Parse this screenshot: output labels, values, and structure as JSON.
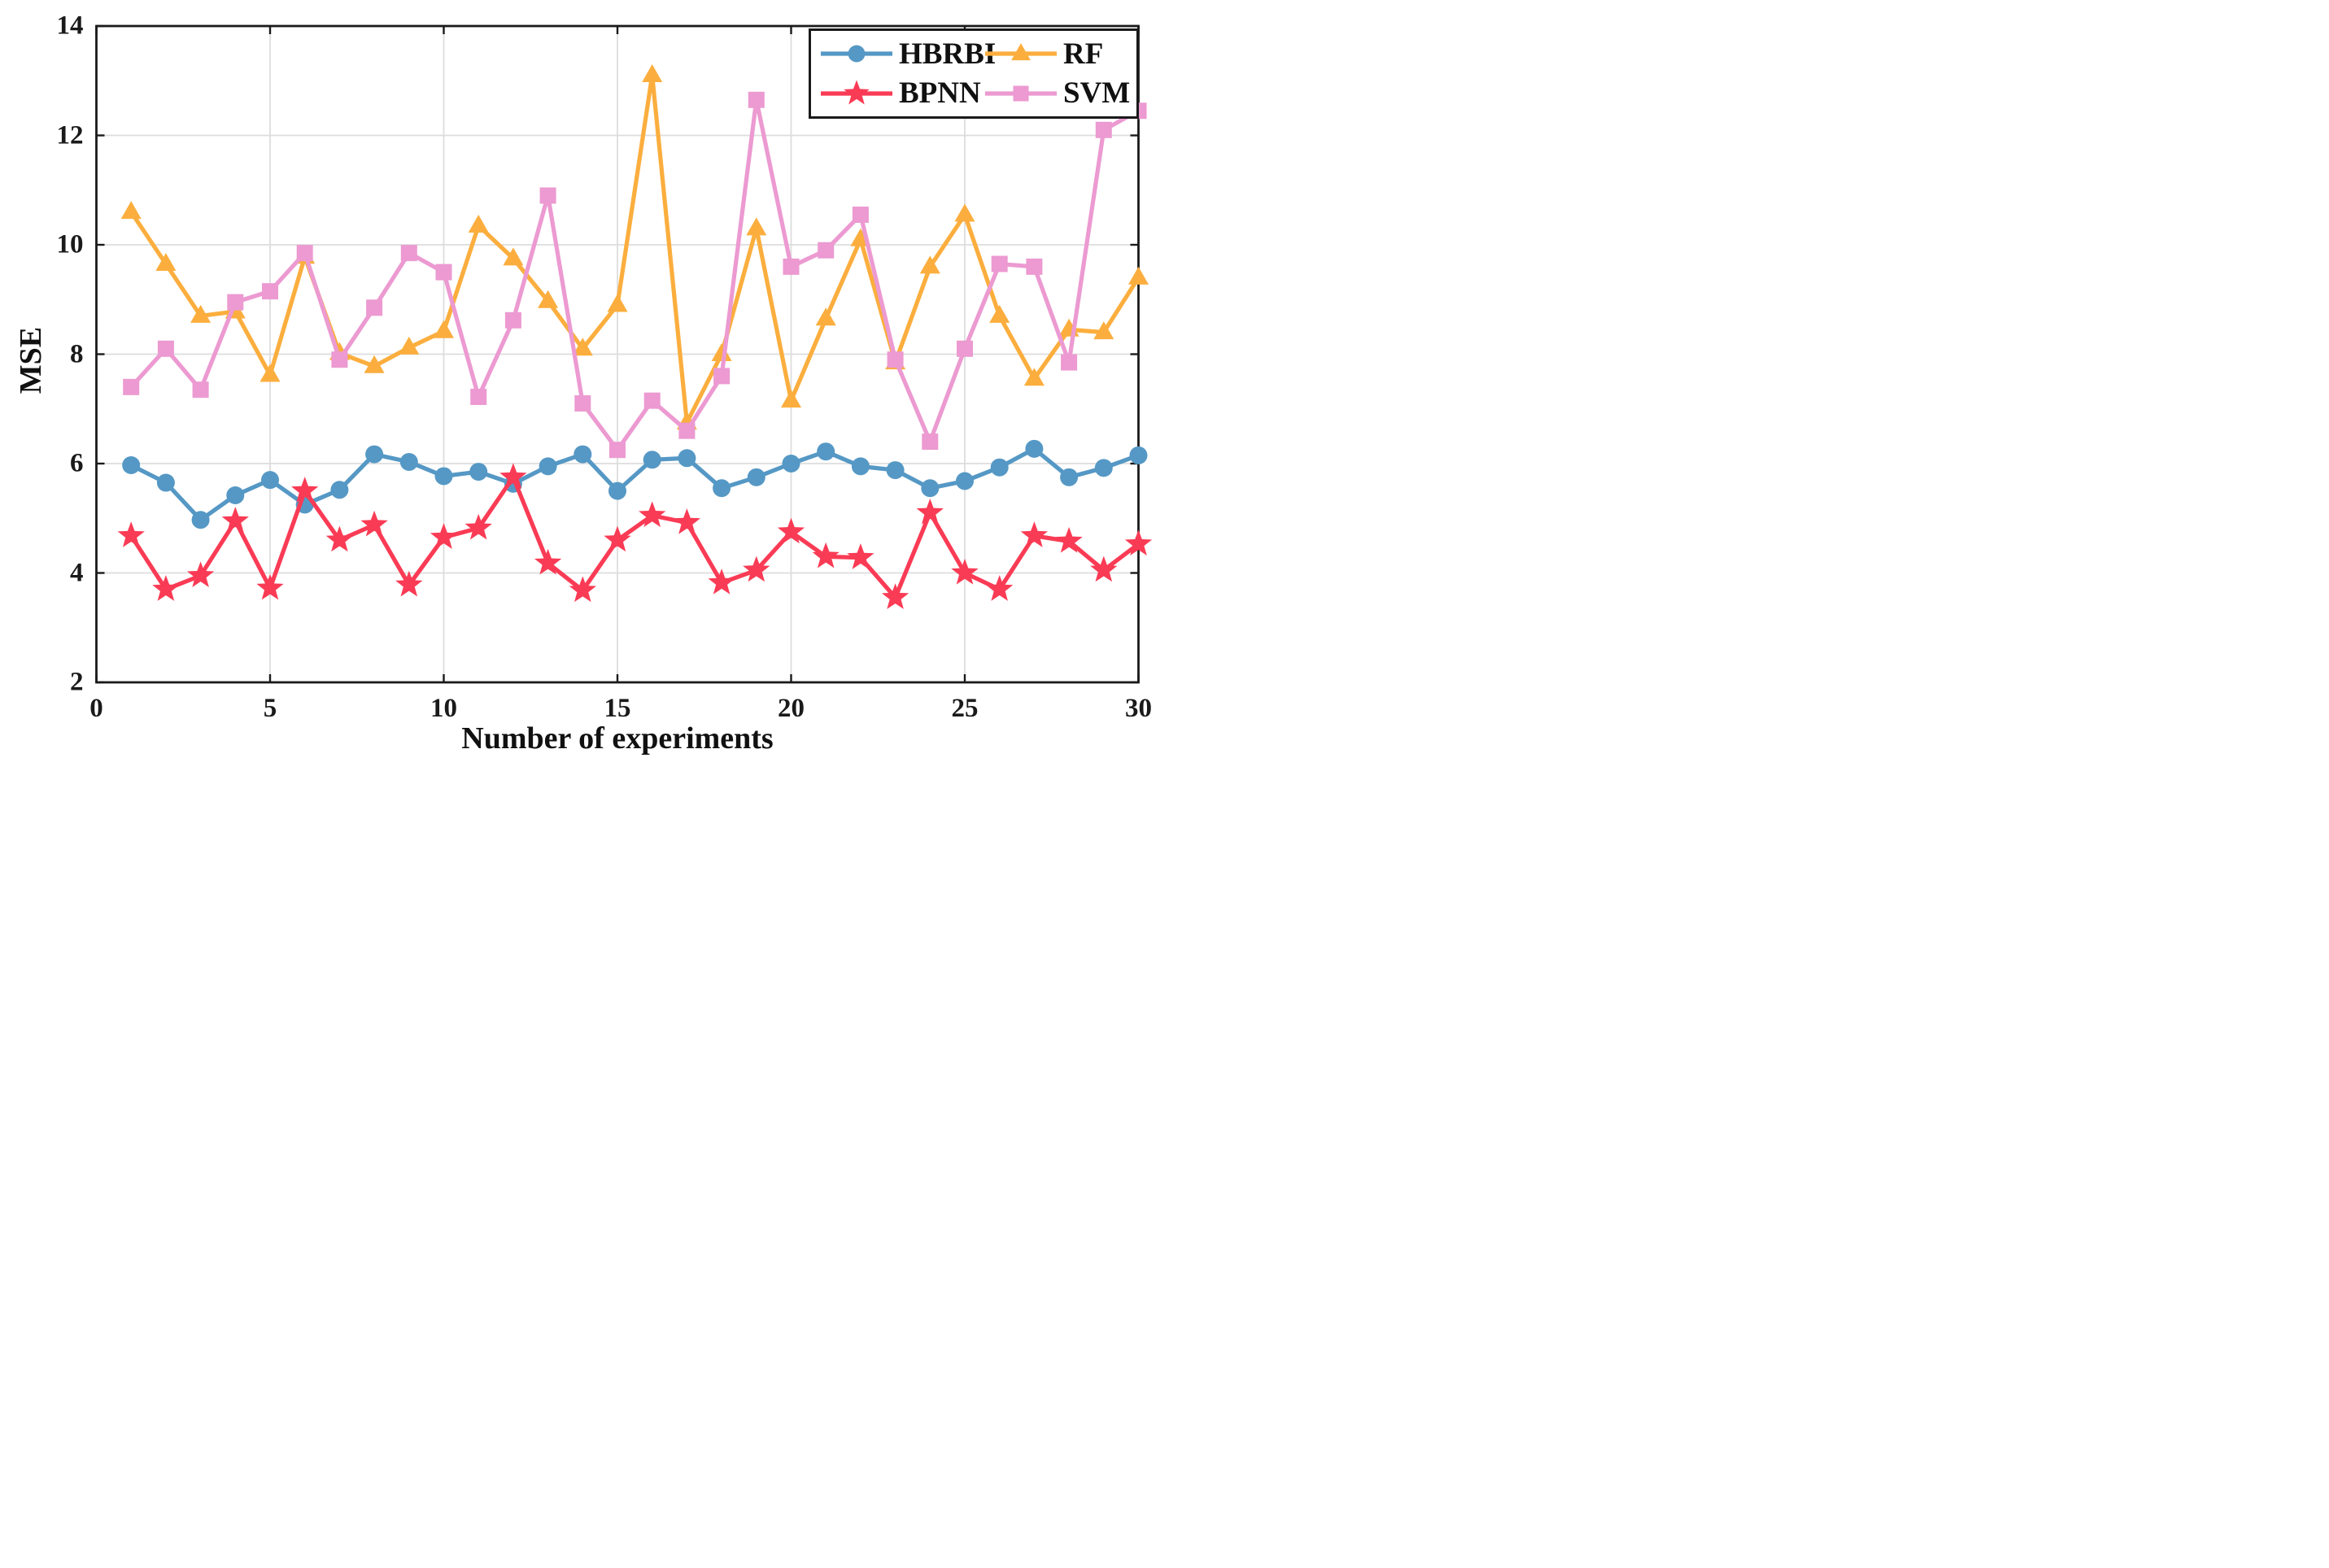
{
  "chart_data": {
    "type": "line",
    "title": "",
    "xlabel": "Number of experiments",
    "ylabel": "MSE",
    "xlim": [
      0,
      30
    ],
    "ylim": [
      2,
      14
    ],
    "xticks": [
      0,
      5,
      10,
      15,
      20,
      25,
      30
    ],
    "yticks": [
      2,
      4,
      6,
      8,
      10,
      12,
      14
    ],
    "grid": true,
    "legend_position": "top-right",
    "x": [
      1,
      2,
      3,
      4,
      5,
      6,
      7,
      8,
      9,
      10,
      11,
      12,
      13,
      14,
      15,
      16,
      17,
      18,
      19,
      20,
      21,
      22,
      23,
      24,
      25,
      26,
      27,
      28,
      29,
      30
    ],
    "series": [
      {
        "name": "HBRBI",
        "marker": "circle",
        "color": "#5598C5",
        "values": [
          5.97,
          5.65,
          4.97,
          5.42,
          5.7,
          5.25,
          5.52,
          6.17,
          6.03,
          5.77,
          5.85,
          5.63,
          5.95,
          6.17,
          5.5,
          6.07,
          6.1,
          5.55,
          5.75,
          6.0,
          6.22,
          5.95,
          5.88,
          5.55,
          5.68,
          5.93,
          6.27,
          5.75,
          5.92,
          6.15
        ]
      },
      {
        "name": "BPNN",
        "marker": "star",
        "color": "#FA3B55",
        "values": [
          4.68,
          3.7,
          3.95,
          4.95,
          3.72,
          5.5,
          4.6,
          4.88,
          3.78,
          4.65,
          4.82,
          5.75,
          4.18,
          3.68,
          4.6,
          5.05,
          4.92,
          3.82,
          4.05,
          4.75,
          4.3,
          4.28,
          3.55,
          5.1,
          4.0,
          3.7,
          4.68,
          4.58,
          4.05,
          4.53
        ]
      },
      {
        "name": "RF",
        "marker": "triangle",
        "color": "#FBAE3E",
        "values": [
          10.6,
          9.65,
          8.7,
          8.78,
          7.62,
          9.78,
          8.02,
          7.78,
          8.12,
          8.42,
          10.35,
          9.75,
          8.97,
          8.1,
          8.9,
          13.1,
          6.75,
          8.0,
          10.3,
          7.15,
          8.65,
          10.1,
          7.85,
          9.6,
          10.55,
          8.7,
          7.55,
          8.45,
          8.4,
          9.4
        ]
      },
      {
        "name": "SVM",
        "marker": "square",
        "color": "#EC9AD1",
        "values": [
          7.4,
          8.1,
          7.35,
          8.95,
          9.15,
          9.85,
          7.9,
          8.85,
          9.85,
          9.5,
          7.22,
          8.62,
          10.9,
          7.1,
          6.25,
          7.15,
          6.6,
          7.6,
          12.65,
          9.6,
          9.9,
          10.55,
          7.9,
          6.4,
          8.1,
          9.65,
          9.6,
          7.85,
          12.1,
          12.45
        ]
      }
    ],
    "style": {
      "grid_color": "#DDDDDD",
      "axis_color": "#1A1A1A",
      "background": "#FFFFFF"
    }
  }
}
